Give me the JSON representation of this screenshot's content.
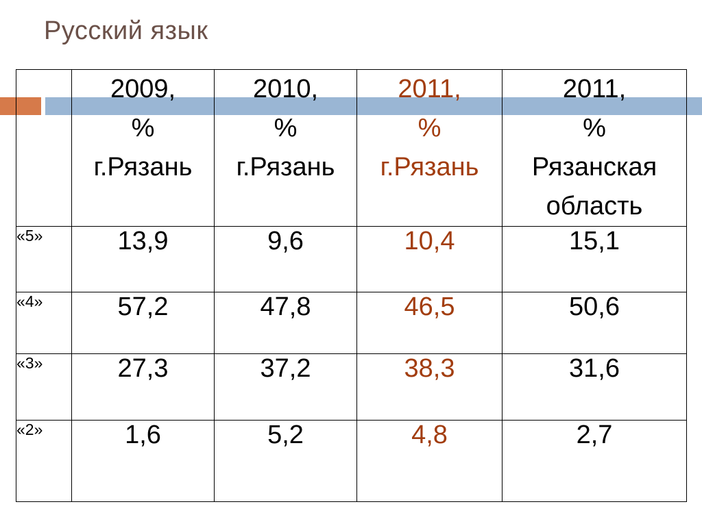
{
  "title": "Русский язык",
  "colors": {
    "title": "#6b5149",
    "accent": "#a23d0f",
    "band_orange": "#d67a4a",
    "band_blue": "#9ab6d4"
  },
  "table": {
    "headers": [
      "",
      [
        "2009,",
        "%",
        "г.Рязань"
      ],
      [
        "2010,",
        "%",
        "г.Рязань"
      ],
      [
        "2011,",
        "%",
        "г.Рязань"
      ],
      [
        "2011,",
        "%",
        "Рязанская",
        "область"
      ]
    ],
    "rows": [
      {
        "label": "«5»",
        "values": [
          "13,9",
          "9,6",
          "10,4",
          "15,1"
        ]
      },
      {
        "label": "«4»",
        "values": [
          "57,2",
          "47,8",
          "46,5",
          "50,6"
        ]
      },
      {
        "label": "«3»",
        "values": [
          "27,3",
          "37,2",
          "38,3",
          "31,6"
        ]
      },
      {
        "label": "«2»",
        "values": [
          "1,6",
          "5,2",
          "4,8",
          "2,7"
        ]
      }
    ]
  }
}
